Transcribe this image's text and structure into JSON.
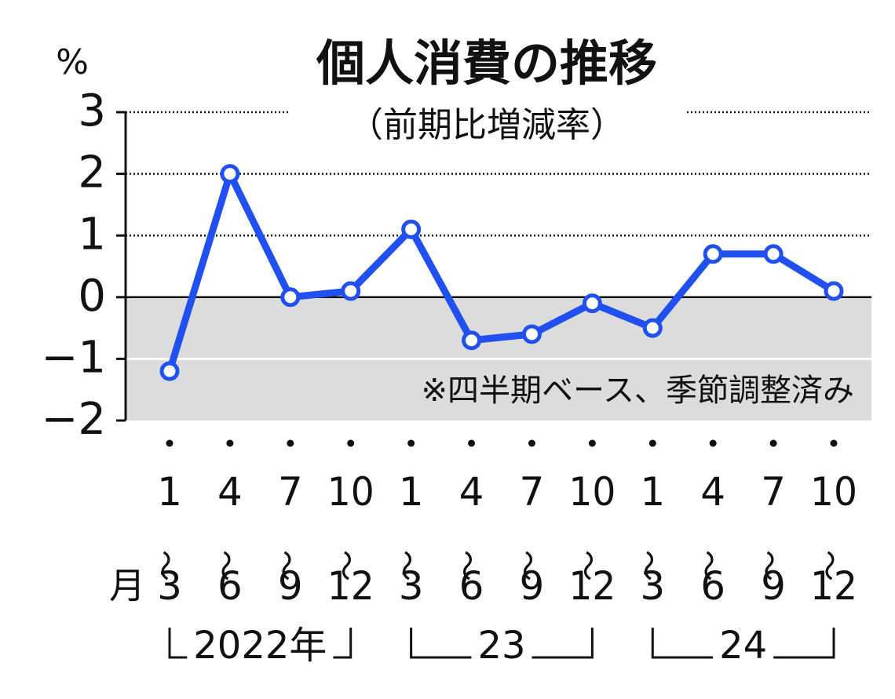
{
  "chart_data": {
    "type": "line",
    "title": "個人消費の推移",
    "subtitle": "（前期比増減率）",
    "y_unit": "%",
    "note": "※四半期ベース、季節調整済み",
    "month_label": "月",
    "categories": [
      "1～3",
      "4～6",
      "7～9",
      "10～12",
      "1～3",
      "4～6",
      "7～9",
      "10～12",
      "1～3",
      "4～6",
      "7～9",
      "10～12"
    ],
    "year_groups": [
      "2022年",
      "23",
      "24"
    ],
    "series": [
      {
        "color": "#2050f0",
        "values": [
          -1.2,
          2.0,
          0.0,
          0.1,
          1.1,
          -0.7,
          -0.6,
          -0.1,
          -0.5,
          0.7,
          0.7,
          0.1
        ]
      }
    ],
    "ylim": [
      -2,
      3
    ],
    "yticks": [
      {
        "value": -2,
        "label": "−2"
      },
      {
        "value": -1,
        "label": "−1"
      },
      0,
      1,
      2,
      3
    ],
    "grid": true,
    "negative_shade": "#dcdcdc"
  }
}
